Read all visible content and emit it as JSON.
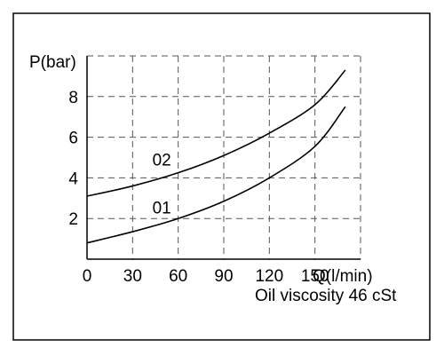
{
  "chart_data": {
    "type": "line",
    "xlabel": "Q(l/min)",
    "ylabel": "P(bar)",
    "annotation": "Oil viscosity 46 cSt",
    "xlim": [
      0,
      180
    ],
    "ylim": [
      0,
      10
    ],
    "x_ticks": [
      0,
      30,
      60,
      90,
      120,
      150
    ],
    "x_tick_labels": [
      "0",
      "30",
      "60",
      "90",
      "120",
      "150"
    ],
    "y_ticks": [
      2,
      4,
      6,
      8
    ],
    "y_tick_labels": [
      "2",
      "4",
      "6",
      "8"
    ],
    "grid": true,
    "grid_style": "dashed",
    "series": [
      {
        "name": "01",
        "x": [
          0,
          30,
          60,
          90,
          120,
          150,
          170
        ],
        "y": [
          0.8,
          1.35,
          2.0,
          2.85,
          4.0,
          5.55,
          7.5
        ]
      },
      {
        "name": "02",
        "x": [
          0,
          30,
          60,
          90,
          120,
          150,
          170
        ],
        "y": [
          3.1,
          3.6,
          4.25,
          5.1,
          6.2,
          7.6,
          9.3
        ]
      }
    ],
    "series_label_positions": [
      {
        "name": "01",
        "x": 43,
        "y": 2.25
      },
      {
        "name": "02",
        "x": 43,
        "y": 4.6
      }
    ],
    "colors": {
      "line": "#000000",
      "grid": "#555555",
      "border": "#000000"
    }
  }
}
